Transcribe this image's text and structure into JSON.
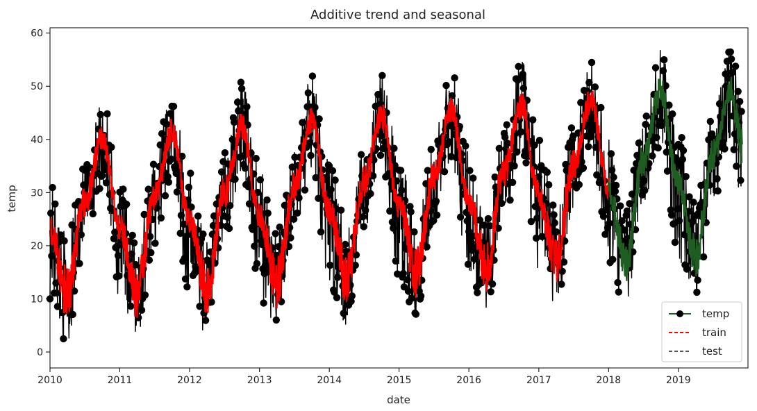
{
  "chart_data": {
    "type": "line",
    "title": "Additive trend and seasonal",
    "xlabel": "date",
    "ylabel": "temp",
    "xlim": [
      "2010-01-01",
      "2019-12-31"
    ],
    "ylim": [
      -3,
      61
    ],
    "x_ticks": [
      "2010",
      "2011",
      "2012",
      "2013",
      "2014",
      "2015",
      "2016",
      "2017",
      "2018",
      "2019"
    ],
    "y_ticks": [
      0,
      10,
      20,
      30,
      40,
      50,
      60
    ],
    "grid": false,
    "legend_position": "lower-right",
    "colors": {
      "temp": "#000000",
      "train": "#ff0000",
      "test": "#1e5e20",
      "legend_temp_line": "#1e5e20",
      "legend_test_line": "#555555"
    },
    "series": [
      {
        "name": "temp",
        "style": "line-with-circle-markers",
        "x": [
          "2010-01",
          "2010-04",
          "2010-07",
          "2010-10",
          "2011-01",
          "2011-04",
          "2011-07",
          "2011-10",
          "2012-01",
          "2012-04",
          "2012-07",
          "2012-10",
          "2013-01",
          "2013-04",
          "2013-07",
          "2013-10",
          "2014-01",
          "2014-04",
          "2014-07",
          "2014-10",
          "2015-01",
          "2015-04",
          "2015-07",
          "2015-10",
          "2016-01",
          "2016-04",
          "2016-07",
          "2016-10",
          "2017-01",
          "2017-04",
          "2017-07",
          "2017-10",
          "2018-01",
          "2018-04",
          "2018-07",
          "2018-10",
          "2019-01",
          "2019-04",
          "2019-07",
          "2019-10",
          "2019-12"
        ],
        "low": [
          10,
          1,
          20,
          31,
          10,
          2,
          20,
          32,
          10,
          3,
          21,
          33,
          10,
          4,
          22,
          34,
          12,
          5,
          23,
          35,
          13,
          7,
          24,
          36,
          14,
          8,
          25,
          37,
          15,
          8,
          26,
          38,
          16,
          8,
          27,
          39,
          17,
          10,
          28,
          40,
          26
        ],
        "high": [
          32,
          22,
          35,
          48,
          32,
          21,
          36,
          50,
          34,
          22,
          38,
          51,
          35,
          23,
          39,
          52,
          36,
          24,
          40,
          53,
          37,
          25,
          41,
          54,
          38,
          26,
          42,
          55,
          40,
          27,
          43,
          55,
          40,
          27,
          44,
          57,
          42,
          28,
          45,
          58,
          48
        ]
      },
      {
        "name": "train",
        "style": "dashed",
        "x": [
          "2010-01",
          "2010-04",
          "2010-07",
          "2010-10",
          "2011-01",
          "2011-04",
          "2011-07",
          "2011-10",
          "2012-01",
          "2012-04",
          "2012-07",
          "2012-10",
          "2013-01",
          "2013-04",
          "2013-07",
          "2013-10",
          "2014-01",
          "2014-04",
          "2014-07",
          "2014-10",
          "2015-01",
          "2015-04",
          "2015-07",
          "2015-10",
          "2016-01",
          "2016-04",
          "2016-07",
          "2016-10",
          "2017-01",
          "2017-04",
          "2017-07",
          "2017-10",
          "2018-01"
        ],
        "low": [
          20,
          6,
          25,
          38,
          21,
          6,
          26,
          39,
          22,
          7,
          27,
          40,
          23,
          8,
          28,
          41,
          24,
          9,
          29,
          42,
          25,
          10,
          30,
          43,
          26,
          11,
          31,
          44,
          27,
          12,
          32,
          45,
          28
        ],
        "high": [
          26,
          16,
          31,
          43,
          26,
          16,
          32,
          44,
          27,
          17,
          33,
          45,
          28,
          18,
          34,
          46,
          29,
          19,
          35,
          47,
          30,
          20,
          36,
          48,
          31,
          21,
          37,
          49,
          32,
          22,
          38,
          50,
          33
        ]
      },
      {
        "name": "test",
        "style": "dashed",
        "x": [
          "2018-01",
          "2018-04",
          "2018-07",
          "2018-10",
          "2019-01",
          "2019-04",
          "2019-07",
          "2019-10",
          "2019-12"
        ],
        "low": [
          28,
          13,
          33,
          46,
          29,
          14,
          34,
          47,
          35
        ],
        "high": [
          33,
          21,
          39,
          52,
          34,
          22,
          40,
          52,
          42
        ]
      }
    ]
  }
}
